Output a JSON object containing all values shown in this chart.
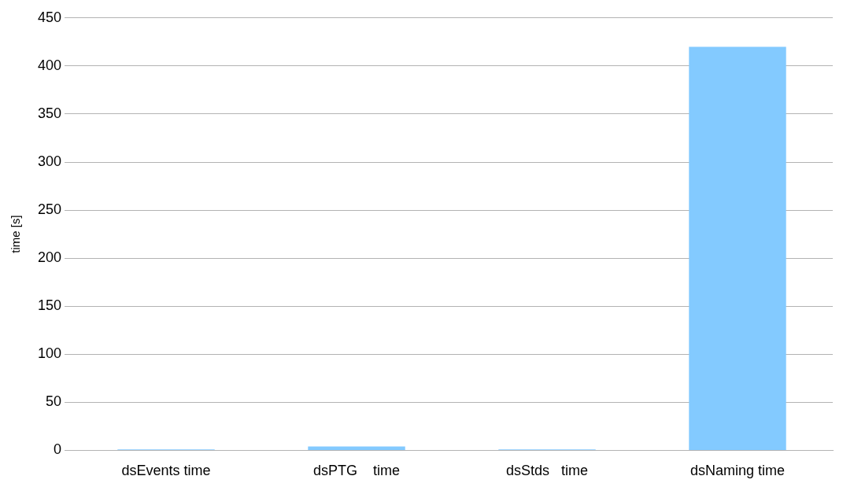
{
  "chart_data": {
    "type": "bar",
    "ylabel": "time [s]",
    "categories": [
      "dsEvents time",
      "dsPTG    time",
      "dsStds   time",
      "dsNaming time"
    ],
    "values": [
      1,
      4,
      1,
      420
    ],
    "color": "#83caff",
    "ylim": [
      0,
      450
    ],
    "yticks": [
      0,
      50,
      100,
      150,
      200,
      250,
      300,
      350,
      400,
      450
    ],
    "grid": "y",
    "legend": false
  }
}
